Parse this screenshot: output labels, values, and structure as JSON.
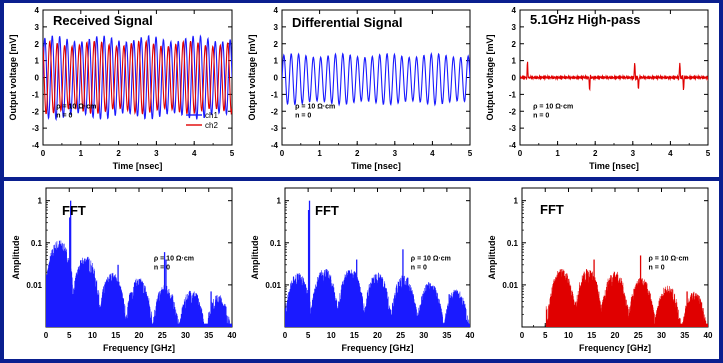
{
  "chart_data": [
    {
      "id": "received",
      "type": "line",
      "title": "Received Signal",
      "xlabel": "Time [nsec]",
      "ylabel": "Output voltage [mV]",
      "xlim": [
        0,
        5
      ],
      "ylim": [
        -4,
        4
      ],
      "xticks": [
        0,
        1,
        2,
        3,
        4,
        5
      ],
      "yticks": [
        -4,
        -3,
        -2,
        -1,
        0,
        1,
        2,
        3,
        4
      ],
      "log_y": false,
      "annotation": [
        "ρ = 10 Ω·cm",
        "n = 0"
      ],
      "legend": "bottom-right",
      "series": [
        {
          "name": "ch1",
          "color": "#1a1aff",
          "frequency_ghz": 5.1,
          "amplitude_mv": 2.3,
          "phase": 0.0
        },
        {
          "name": "ch2",
          "color": "#e00000",
          "frequency_ghz": 5.1,
          "amplitude_mv": 2.0,
          "phase": 2.1
        }
      ]
    },
    {
      "id": "differential",
      "type": "line",
      "title": "Differential Signal",
      "xlabel": "Time [nsec]",
      "ylabel": "Output voltage [mV]",
      "xlim": [
        0,
        5
      ],
      "ylim": [
        -4,
        4
      ],
      "xticks": [
        0,
        1,
        2,
        3,
        4,
        5
      ],
      "yticks": [
        -4,
        -3,
        -2,
        -1,
        0,
        1,
        2,
        3,
        4
      ],
      "log_y": false,
      "annotation": [
        "ρ = 10 Ω·cm",
        "n = 0"
      ],
      "series": [
        {
          "name": "",
          "color": "#1a1aff",
          "frequency_ghz": 5.1,
          "amplitude_mv": 1.4,
          "offset_mv": -0.1
        }
      ]
    },
    {
      "id": "highpass",
      "type": "line",
      "title": "5.1GHz High-pass",
      "xlabel": "Time [nsec]",
      "ylabel": "Output voltage [mV]",
      "xlim": [
        0,
        5
      ],
      "ylim": [
        -4,
        4
      ],
      "xticks": [
        0,
        1,
        2,
        3,
        4,
        5
      ],
      "yticks": [
        -4,
        -3,
        -2,
        -1,
        0,
        1,
        2,
        3,
        4
      ],
      "log_y": false,
      "annotation": [
        "ρ = 10 Ω·cm",
        "n = 0"
      ],
      "series": [
        {
          "name": "",
          "color": "#e00000",
          "spikes_ns": [
            0.2,
            1.85,
            3.05,
            3.15,
            4.25,
            4.35
          ],
          "spike_mv": 0.9
        }
      ]
    },
    {
      "id": "fft1",
      "type": "bar",
      "title": "FFT",
      "xlabel": "Frequency [GHz]",
      "ylabel": "Amplitude",
      "xlim": [
        0,
        40
      ],
      "ylim": [
        0.001,
        2
      ],
      "xticks": [
        0,
        5,
        10,
        15,
        20,
        25,
        30,
        35,
        40
      ],
      "yticks": [
        0.01,
        0.1,
        1
      ],
      "log_y": true,
      "annotation": [
        "ρ = 10 Ω·cm",
        "n = 0"
      ],
      "series": [
        {
          "name": "",
          "color": "#1a1aff",
          "start_ghz": 0,
          "peaks": [
            [
              5.1,
              0.4
            ],
            [
              5.3,
              1.0
            ],
            [
              15.5,
              0.03
            ],
            [
              25.5,
              0.06
            ],
            [
              25.8,
              0.04
            ],
            [
              35.5,
              0.007
            ]
          ],
          "lobe_envelope": [
            0.12,
            0.05,
            0.02,
            0.015,
            0.01,
            0.008,
            0.006
          ]
        }
      ]
    },
    {
      "id": "fft2",
      "type": "bar",
      "title": "FFT",
      "xlabel": "Frequency [GHz]",
      "ylabel": "Amplitude",
      "xlim": [
        0,
        40
      ],
      "ylim": [
        0.001,
        2
      ],
      "xticks": [
        0,
        5,
        10,
        15,
        20,
        25,
        30,
        35,
        40
      ],
      "yticks": [
        0.01,
        0.1,
        1
      ],
      "log_y": true,
      "annotation": [
        "ρ = 10 Ω·cm",
        "n = 0"
      ],
      "series": [
        {
          "name": "",
          "color": "#1a1aff",
          "start_ghz": 0,
          "peaks": [
            [
              5.1,
              0.6
            ],
            [
              5.3,
              1.0
            ],
            [
              15.5,
              0.04
            ],
            [
              25.5,
              0.07
            ],
            [
              35.5,
              0.006
            ]
          ],
          "lobe_envelope": [
            0.02,
            0.025,
            0.025,
            0.02,
            0.018,
            0.012,
            0.008
          ]
        }
      ]
    },
    {
      "id": "fft3",
      "type": "bar",
      "title": "FFT",
      "xlabel": "Frequency [GHz]",
      "ylabel": "Amplitude",
      "xlim": [
        0,
        40
      ],
      "ylim": [
        0.001,
        2
      ],
      "xticks": [
        0,
        5,
        10,
        15,
        20,
        25,
        30,
        35,
        40
      ],
      "yticks": [
        0.01,
        0.1,
        1
      ],
      "log_y": true,
      "annotation": [
        "ρ = 10 Ω·cm",
        "n = 0"
      ],
      "series": [
        {
          "name": "",
          "color": "#e00000",
          "start_ghz": 5.2,
          "peaks": [
            [
              15.5,
              0.04
            ],
            [
              25.5,
              0.05
            ],
            [
              35.5,
              0.007
            ]
          ],
          "lobe_envelope": [
            0.015,
            0.025,
            0.025,
            0.022,
            0.015,
            0.01,
            0.007
          ]
        }
      ]
    }
  ]
}
